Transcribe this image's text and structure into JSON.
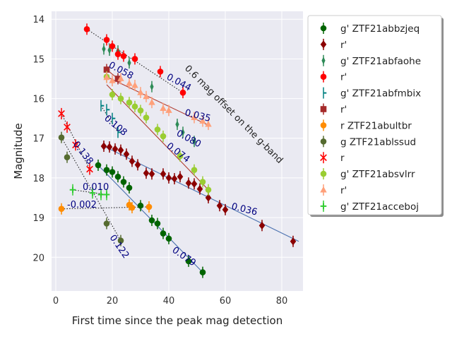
{
  "chart_data": {
    "type": "scatter",
    "xlabel": "First time since the peak mag detection",
    "ylabel": "Magnitude",
    "xlim": [
      -1.5,
      87.5
    ],
    "ylim": [
      20.85,
      13.8
    ],
    "y_inverted": true,
    "xticks": [
      0,
      20,
      40,
      60,
      80
    ],
    "yticks": [
      14,
      15,
      16,
      17,
      18,
      19,
      20
    ],
    "grid": true,
    "legend_position": "outside-right",
    "background": "#eaeaf2",
    "annotation_text": "0.6 mag offset on the g-band",
    "series": [
      {
        "name": "g' ZTF21abbzjeq",
        "color": "#006400",
        "marker": "circle",
        "x": [
          15,
          18,
          20,
          22,
          24,
          26,
          30,
          34,
          36,
          38,
          40,
          47,
          52
        ],
        "y": [
          17.68,
          17.8,
          17.85,
          17.97,
          18.1,
          18.25,
          18.7,
          19.07,
          19.15,
          19.4,
          19.53,
          20.1,
          20.38
        ]
      },
      {
        "name": "r'",
        "color": "#8b0000",
        "marker": "diamond",
        "x": [
          17,
          19,
          21,
          23,
          25,
          27,
          29,
          32,
          34,
          38,
          40,
          42,
          44,
          47,
          49,
          51,
          54,
          58,
          60,
          73,
          84
        ],
        "y": [
          17.2,
          17.22,
          17.27,
          17.3,
          17.4,
          17.58,
          17.67,
          17.88,
          17.9,
          17.9,
          18.0,
          18.02,
          17.97,
          18.13,
          18.15,
          18.28,
          18.5,
          18.7,
          18.8,
          19.2,
          19.6
        ]
      },
      {
        "name": "g' ZTF21abfaohe",
        "color": "#2e8b57",
        "marker": "thin_diamond",
        "x": [
          17,
          19,
          22,
          26,
          34,
          43,
          45,
          49
        ],
        "y": [
          14.75,
          14.78,
          14.8,
          15.1,
          15.7,
          16.65,
          16.85,
          17.08
        ]
      },
      {
        "name": "r'",
        "color": "#ff0000",
        "marker": "circle",
        "x": [
          11,
          18,
          20,
          22,
          24,
          28,
          37,
          45
        ],
        "y": [
          14.25,
          14.52,
          14.68,
          14.88,
          14.93,
          15.0,
          15.32,
          15.85
        ]
      },
      {
        "name": "g' ZTF21abfmbix",
        "color": "#008080",
        "marker": "tick",
        "x": [
          16,
          18,
          20,
          22
        ],
        "y": [
          16.18,
          16.28,
          16.5,
          16.85
        ]
      },
      {
        "name": "r'",
        "color": "#a52a2a",
        "marker": "square",
        "x": [
          18,
          22
        ],
        "y": [
          15.27,
          15.5
        ]
      },
      {
        "name": "r ZTF21abultbr",
        "color": "#ff8c00",
        "marker": "circle",
        "x": [
          2,
          26,
          27,
          33
        ],
        "y": [
          18.78,
          18.68,
          18.75,
          18.73
        ]
      },
      {
        "name": "g ZTF21ablssud",
        "color": "#556b2f",
        "marker": "circle",
        "x": [
          2,
          4,
          18,
          23
        ],
        "y": [
          16.98,
          17.48,
          19.15,
          19.58
        ]
      },
      {
        "name": "r",
        "color": "#ff0000",
        "marker": "x",
        "x": [
          2,
          4,
          7,
          12
        ],
        "y": [
          16.38,
          16.72,
          17.17,
          17.78
        ]
      },
      {
        "name": "g' ZTF21absvlrr",
        "color": "#9acd32",
        "marker": "circle",
        "x": [
          18,
          20,
          23,
          26,
          28,
          30,
          32,
          36,
          38,
          44,
          49,
          52,
          54
        ],
        "y": [
          15.45,
          15.9,
          16.0,
          16.1,
          16.2,
          16.3,
          16.48,
          16.78,
          16.95,
          17.45,
          17.8,
          18.1,
          18.3
        ]
      },
      {
        "name": "r'",
        "color": "#ffa07a",
        "marker": "triangle",
        "x": [
          18,
          20,
          23,
          26,
          28,
          30,
          32,
          34,
          38,
          40,
          49,
          52,
          54
        ],
        "y": [
          15.47,
          15.55,
          15.5,
          15.62,
          15.67,
          15.85,
          15.95,
          16.1,
          16.25,
          16.3,
          16.48,
          16.57,
          16.65
        ]
      },
      {
        "name": "g' ZTF21acceboj",
        "color": "#32cd32",
        "marker": "plus",
        "x": [
          6,
          13,
          16,
          18
        ],
        "y": [
          18.3,
          18.38,
          18.42,
          18.42
        ]
      }
    ],
    "fit_lines": [
      {
        "kind": "dotted",
        "x": [
          11,
          45
        ],
        "y": [
          14.25,
          15.85
        ]
      },
      {
        "kind": "solid",
        "color": "#b03a2e",
        "x": [
          18,
          22
        ],
        "y": [
          15.27,
          15.5
        ]
      },
      {
        "kind": "solid",
        "color": "#b03a2e",
        "x": [
          18,
          54
        ],
        "y": [
          15.65,
          18.3
        ]
      },
      {
        "kind": "dotted",
        "x": [
          16,
          22
        ],
        "y": [
          16.18,
          16.85
        ]
      },
      {
        "kind": "solid",
        "color": "#b03a2e",
        "x": [
          18,
          54
        ],
        "y": [
          15.45,
          16.67
        ]
      },
      {
        "kind": "dotted",
        "x": [
          2,
          12
        ],
        "y": [
          16.38,
          17.78
        ]
      },
      {
        "kind": "dotted",
        "x": [
          6,
          18
        ],
        "y": [
          18.3,
          18.42
        ]
      },
      {
        "kind": "dotted",
        "x": [
          2,
          33
        ],
        "y": [
          18.78,
          18.73
        ]
      },
      {
        "kind": "dotted",
        "x": [
          2,
          23
        ],
        "y": [
          16.98,
          19.58
        ]
      },
      {
        "kind": "solid",
        "color": "#4c72b0",
        "x": [
          17,
          86
        ],
        "y": [
          17.2,
          19.6
        ]
      },
      {
        "kind": "solid",
        "color": "#4c72b0",
        "x": [
          15,
          52
        ],
        "y": [
          17.68,
          20.38
        ]
      }
    ],
    "slope_labels": [
      {
        "text": "0.058",
        "x": 18.5,
        "y": 15.2,
        "angle": 28
      },
      {
        "text": "0.044",
        "x": 39,
        "y": 15.5,
        "angle": 28
      },
      {
        "text": "0.108",
        "x": 17,
        "y": 16.52,
        "angle": 40
      },
      {
        "text": "0.035",
        "x": 45.5,
        "y": 16.42,
        "angle": 14
      },
      {
        "text": "0.080",
        "x": 42.5,
        "y": 16.92,
        "angle": 28
      },
      {
        "text": "0.074",
        "x": 39,
        "y": 17.22,
        "angle": 37
      },
      {
        "text": "0.138",
        "x": 6,
        "y": 17.15,
        "angle": 52
      },
      {
        "text": "0.010",
        "x": 9.5,
        "y": 18.3,
        "angle": 0
      },
      {
        "text": "-0.002",
        "x": 4,
        "y": 18.75,
        "angle": 0
      },
      {
        "text": "0.036",
        "x": 62,
        "y": 18.78,
        "angle": 14
      },
      {
        "text": "0.122",
        "x": 19,
        "y": 19.5,
        "angle": 55
      },
      {
        "text": "0.079",
        "x": 41,
        "y": 19.85,
        "angle": 35
      }
    ]
  }
}
